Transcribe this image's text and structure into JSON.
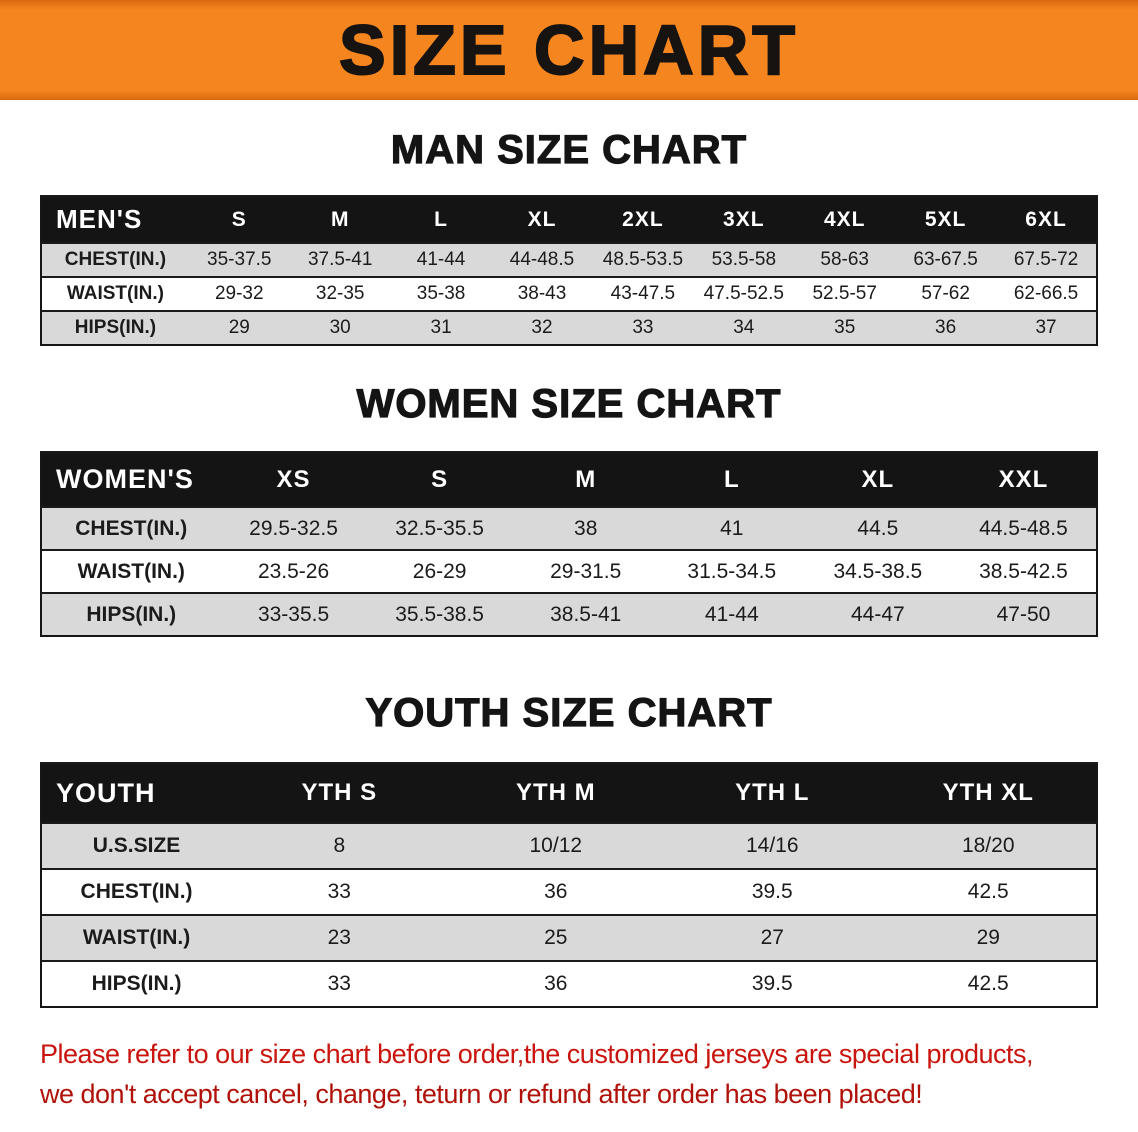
{
  "banner": {
    "title": "SIZE CHART"
  },
  "colors": {
    "banner_bg": "#F5861F",
    "table_header_bg": "#141414",
    "shaded_row": "#D9D9D9",
    "footer_text": "#C9150E"
  },
  "sections": [
    {
      "heading": "MAN SIZE CHART",
      "table": {
        "name": "mens-size-table",
        "header": [
          "MEN'S",
          "S",
          "M",
          "L",
          "XL",
          "2XL",
          "3XL",
          "4XL",
          "5XL",
          "6XL"
        ],
        "rows": [
          [
            "CHEST(IN.)",
            "35-37.5",
            "37.5-41",
            "41-44",
            "44-48.5",
            "48.5-53.5",
            "53.5-58",
            "58-63",
            "63-67.5",
            "67.5-72"
          ],
          [
            "WAIST(IN.)",
            "29-32",
            "32-35",
            "35-38",
            "38-43",
            "43-47.5",
            "47.5-52.5",
            "52.5-57",
            "57-62",
            "62-66.5"
          ],
          [
            "HIPS(IN.)",
            "29",
            "30",
            "31",
            "32",
            "33",
            "34",
            "35",
            "36",
            "37"
          ]
        ]
      }
    },
    {
      "heading": "WOMEN SIZE CHART",
      "table": {
        "name": "womens-size-table",
        "header": [
          "WOMEN'S",
          "XS",
          "S",
          "M",
          "L",
          "XL",
          "XXL"
        ],
        "rows": [
          [
            "CHEST(IN.)",
            "29.5-32.5",
            "32.5-35.5",
            "38",
            "41",
            "44.5",
            "44.5-48.5"
          ],
          [
            "WAIST(IN.)",
            "23.5-26",
            "26-29",
            "29-31.5",
            "31.5-34.5",
            "34.5-38.5",
            "38.5-42.5"
          ],
          [
            "HIPS(IN.)",
            "33-35.5",
            "35.5-38.5",
            "38.5-41",
            "41-44",
            "44-47",
            "47-50"
          ]
        ]
      }
    },
    {
      "heading": "YOUTH SIZE CHART",
      "table": {
        "name": "youth-size-table",
        "header": [
          "YOUTH",
          "YTH S",
          "YTH M",
          "YTH L",
          "YTH XL"
        ],
        "rows": [
          [
            "U.S.SIZE",
            "8",
            "10/12",
            "14/16",
            "18/20"
          ],
          [
            "CHEST(IN.)",
            "33",
            "36",
            "39.5",
            "42.5"
          ],
          [
            "WAIST(IN.)",
            "23",
            "25",
            "27",
            "29"
          ],
          [
            "HIPS(IN.)",
            "33",
            "36",
            "39.5",
            "42.5"
          ]
        ]
      }
    }
  ],
  "footer": {
    "line1": "Please refer to our size chart before order,the customized jerseys are special products,",
    "line2": "we don't accept cancel, change, teturn or refund after order has been placed!"
  }
}
